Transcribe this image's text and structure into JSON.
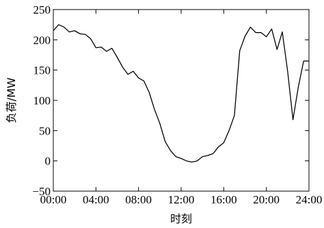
{
  "chart_data": {
    "type": "line",
    "title": "",
    "xlabel": "时刻",
    "ylabel": "负荷/MW",
    "xlim": [
      0,
      24
    ],
    "ylim": [
      -50,
      250
    ],
    "grid": false,
    "legend": "none",
    "x_ticks": [
      {
        "value": 0,
        "label": "00:00"
      },
      {
        "value": 4,
        "label": "04:00"
      },
      {
        "value": 8,
        "label": "08:00"
      },
      {
        "value": 12,
        "label": "12:00"
      },
      {
        "value": 16,
        "label": "16:00"
      },
      {
        "value": 20,
        "label": "20:00"
      },
      {
        "value": 24,
        "label": "24:00"
      }
    ],
    "y_ticks": [
      {
        "value": 250,
        "label": "250"
      },
      {
        "value": 200,
        "label": "200"
      },
      {
        "value": 150,
        "label": "150"
      },
      {
        "value": 100,
        "label": "100"
      },
      {
        "value": 50,
        "label": "50"
      },
      {
        "value": 0,
        "label": "0"
      },
      {
        "value": -50,
        "label": "−50"
      }
    ],
    "series": [
      {
        "color": "#000000",
        "x": [
          0,
          0.5,
          1,
          1.5,
          2,
          2.5,
          3,
          3.5,
          4,
          4.5,
          5,
          5.5,
          6,
          6.5,
          7,
          7.5,
          8,
          8.5,
          9,
          9.5,
          10,
          10.5,
          11,
          11.5,
          12,
          12.5,
          13,
          13.5,
          14,
          14.5,
          15,
          15.5,
          16,
          16.5,
          17,
          17.5,
          18,
          18.5,
          19,
          19.5,
          20,
          20.5,
          21,
          21.5,
          22,
          22.5,
          23,
          23.5,
          24
        ],
        "y": [
          215,
          225,
          221,
          213,
          215,
          210,
          209,
          202,
          187,
          188,
          181,
          186,
          171,
          155,
          143,
          148,
          137,
          132,
          113,
          85,
          62,
          32,
          17,
          7,
          4,
          0,
          -2,
          0,
          7,
          9,
          12,
          23,
          30,
          50,
          75,
          182,
          206,
          221,
          212,
          212,
          205,
          218,
          184,
          213,
          148,
          68,
          122,
          165,
          165
        ]
      }
    ]
  }
}
